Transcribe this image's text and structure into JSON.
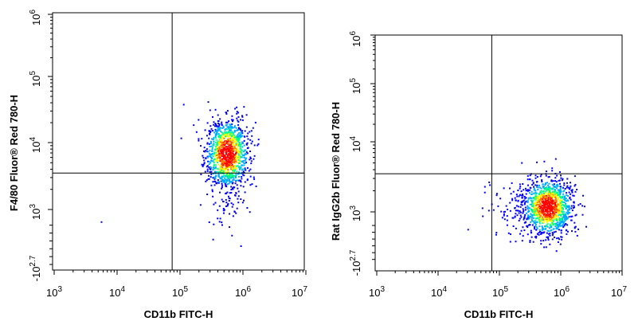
{
  "chart_data": [
    {
      "type": "scatter",
      "subtype": "flow-cytometry-density-dot-plot",
      "title": "",
      "xlabel": "CD11b FITC-H",
      "ylabel": "F4/80 Fluor® Red 780-H",
      "x_scale": "log",
      "y_scale": "log",
      "xlim": [
        1000,
        10000000
      ],
      "ylim": [
        -501,
        1000000
      ],
      "x_ticks": [
        {
          "base": "10",
          "exp": "3"
        },
        {
          "base": "10",
          "exp": "4"
        },
        {
          "base": "10",
          "exp": "5"
        },
        {
          "base": "10",
          "exp": "6"
        },
        {
          "base": "10",
          "exp": "7"
        }
      ],
      "y_ticks": [
        {
          "base": "-10",
          "exp": "2.7"
        },
        {
          "base": "10",
          "exp": "3"
        },
        {
          "base": "10",
          "exp": "4"
        },
        {
          "base": "10",
          "exp": "5"
        },
        {
          "base": "10",
          "exp": "6"
        }
      ],
      "gate": {
        "x": 75000,
        "y": 3500
      },
      "population": {
        "center_x": 550000,
        "center_y": 7000,
        "count": 1200
      },
      "outliers": [
        {
          "x": 5500,
          "y": 700
        }
      ],
      "colors": [
        "#0000ff",
        "#00aaff",
        "#00ff88",
        "#ffff00",
        "#ff7700",
        "#ff0000"
      ],
      "grid": false,
      "legend": "none"
    },
    {
      "type": "scatter",
      "subtype": "flow-cytometry-density-dot-plot",
      "title": "",
      "xlabel": "CD11b FITC-H",
      "ylabel": "Rat IgG2b Fluor® Red 780-H",
      "x_scale": "log",
      "y_scale": "log",
      "xlim": [
        1000,
        10000000
      ],
      "ylim": [
        -501,
        1000000
      ],
      "x_ticks": [
        {
          "base": "10",
          "exp": "3"
        },
        {
          "base": "10",
          "exp": "4"
        },
        {
          "base": "10",
          "exp": "5"
        },
        {
          "base": "10",
          "exp": "6"
        },
        {
          "base": "10",
          "exp": "7"
        }
      ],
      "y_ticks": [
        {
          "base": "-10",
          "exp": "2.7"
        },
        {
          "base": "10",
          "exp": "3"
        },
        {
          "base": "10",
          "exp": "4"
        },
        {
          "base": "10",
          "exp": "5"
        },
        {
          "base": "10",
          "exp": "6"
        }
      ],
      "gate": {
        "x": 75000,
        "y": 3500
      },
      "population": {
        "center_x": 600000,
        "center_y": 1200,
        "count": 1300
      },
      "outliers": [
        {
          "x": 30000,
          "y": 500
        }
      ],
      "colors": [
        "#0000ff",
        "#00aaff",
        "#00ff88",
        "#ffff00",
        "#ff7700",
        "#ff0000"
      ],
      "grid": false,
      "legend": "none"
    }
  ]
}
